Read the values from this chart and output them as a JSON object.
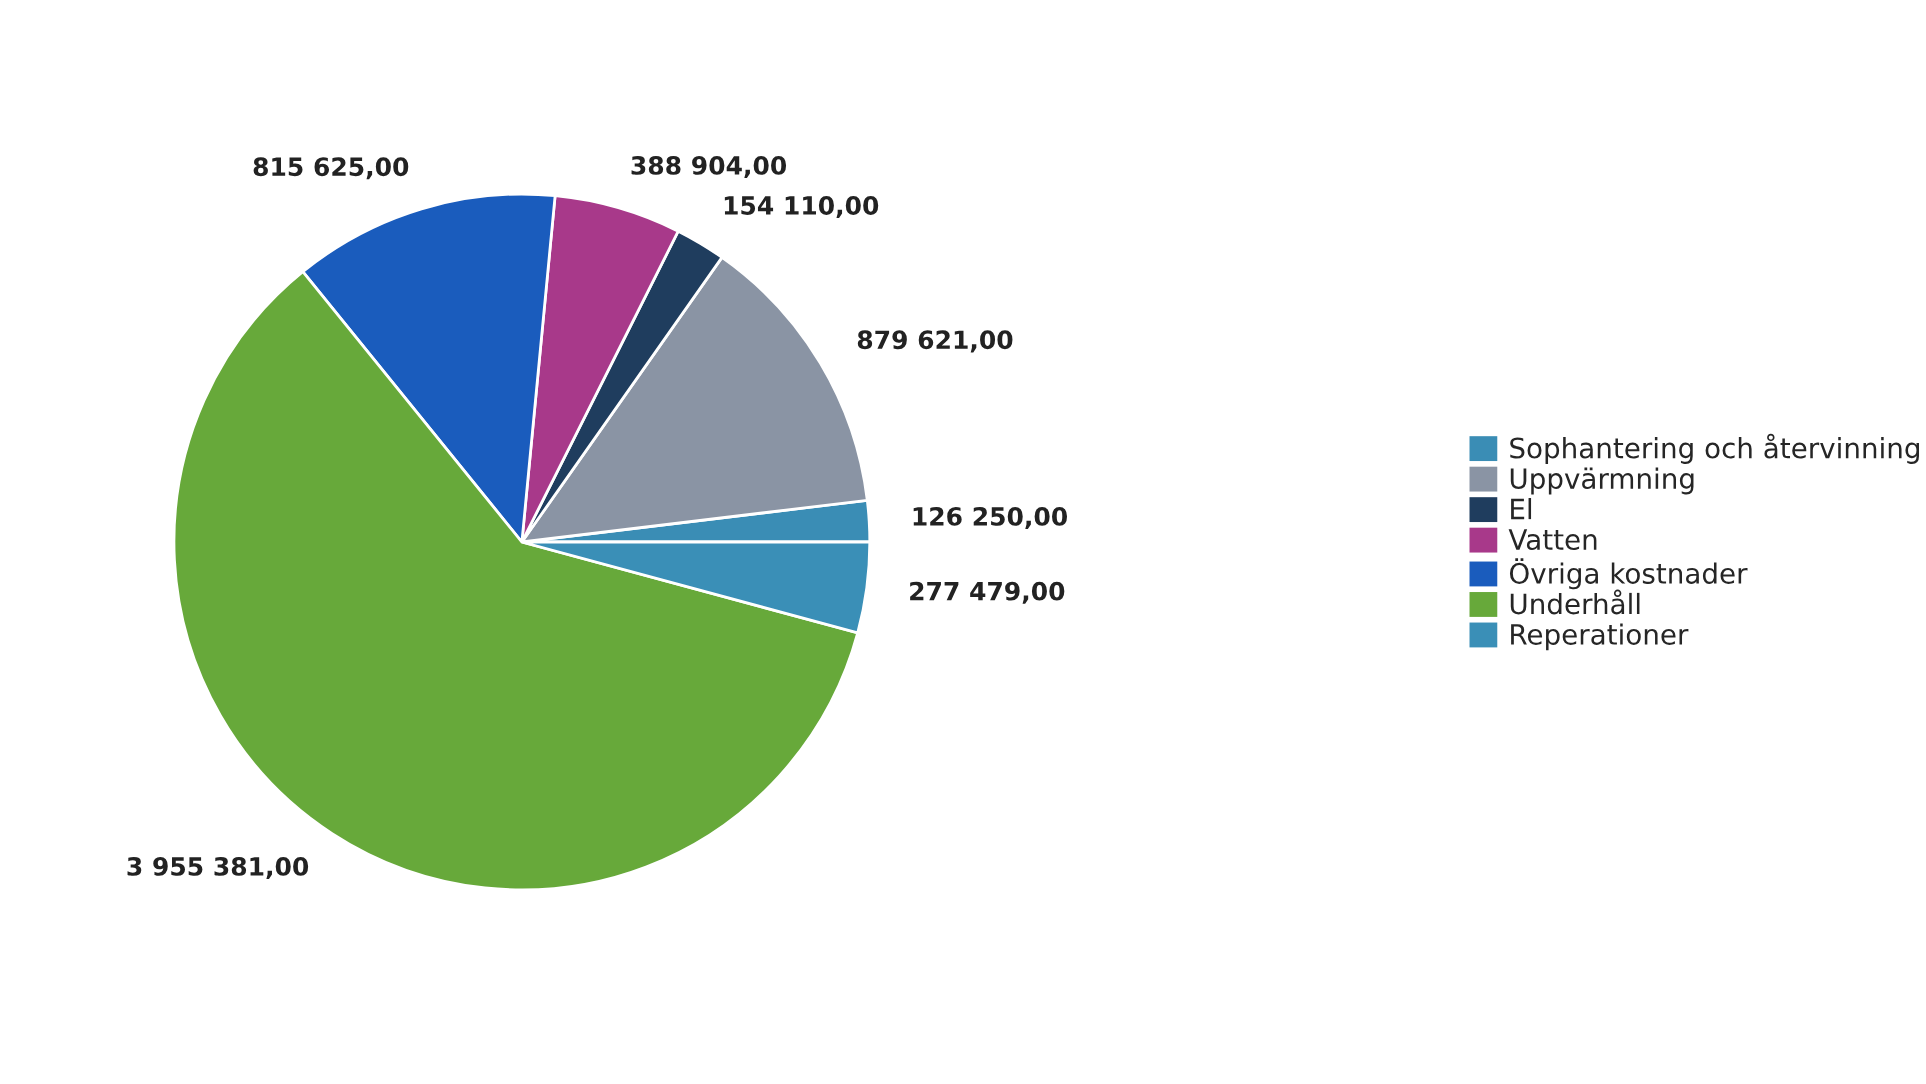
{
  "chart_data": {
    "type": "pie",
    "categories": [
      "Sophantering och återvinning",
      "Uppvärmning",
      "El",
      "Vatten",
      "Övriga kostnader",
      "Underhåll",
      "Reperationer"
    ],
    "values": [
      126250,
      879621,
      154110,
      388904,
      815625,
      3955381,
      277479
    ],
    "value_labels": [
      "126 250,00",
      "879 621,00",
      "154 110,00",
      "388 904,00",
      "815 625,00",
      "3 955 381,00",
      "277 479,00"
    ],
    "colors": [
      "#3a8db5",
      "#8a94a4",
      "#1f3d5e",
      "#a8398a",
      "#1a5cbd",
      "#67a93a",
      "#3a8fb7"
    ],
    "legend": "right"
  }
}
